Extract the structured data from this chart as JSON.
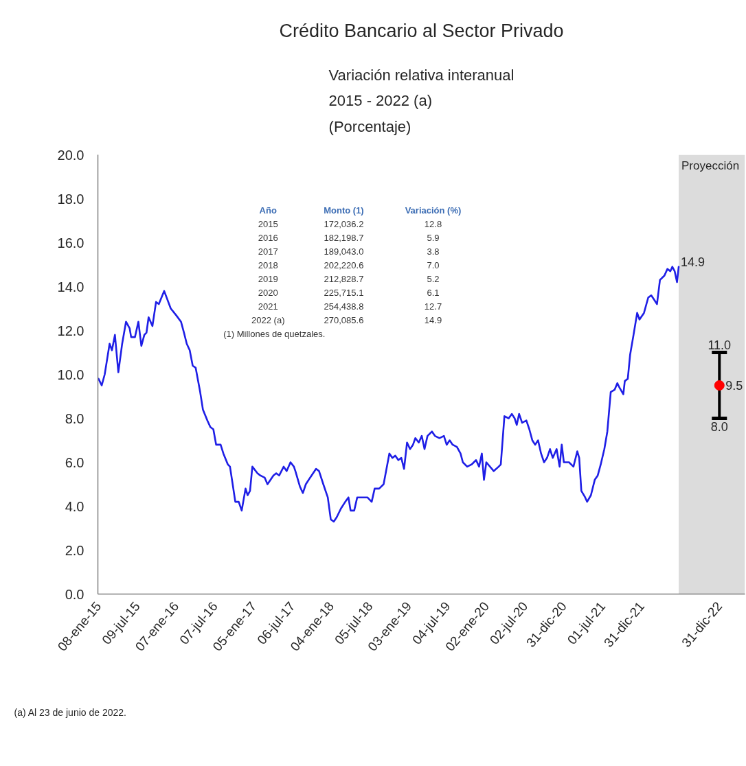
{
  "chart_data": {
    "type": "line",
    "title": "Crédito Bancario al Sector Privado",
    "subtitle": "Variación relativa interanual\n2015 - 2022 (a)\n(Porcentaje)",
    "xlim": [
      "2015-01-05",
      "2023-04-30"
    ],
    "xticks": [
      {
        "value": "2015-01-08",
        "label": "08-ene-15"
      },
      {
        "value": "2015-07-09",
        "label": "09-jul-15"
      },
      {
        "value": "2016-01-07",
        "label": "07-ene-16"
      },
      {
        "value": "2016-07-07",
        "label": "07-jul-16"
      },
      {
        "value": "2017-01-05",
        "label": "05-ene-17"
      },
      {
        "value": "2017-07-06",
        "label": "06-jul-17"
      },
      {
        "value": "2018-01-04",
        "label": "04-ene-18"
      },
      {
        "value": "2018-07-05",
        "label": "05-jul-18"
      },
      {
        "value": "2019-01-03",
        "label": "03-ene-19"
      },
      {
        "value": "2019-07-04",
        "label": "04-jul-19"
      },
      {
        "value": "2020-01-02",
        "label": "02-ene-20"
      },
      {
        "value": "2020-07-02",
        "label": "02-jul-20"
      },
      {
        "value": "2020-12-31",
        "label": "31-dic-20"
      },
      {
        "value": "2021-07-01",
        "label": "01-jul-21"
      },
      {
        "value": "2021-12-31",
        "label": "31-dic-21"
      },
      {
        "value": "2022-12-31",
        "label": "31-dic-22"
      }
    ],
    "ylim": [
      0,
      20
    ],
    "yticks": [
      {
        "value": 0,
        "label": "0.0"
      },
      {
        "value": 2,
        "label": "2.0"
      },
      {
        "value": 4,
        "label": "4.0"
      },
      {
        "value": 6,
        "label": "6.0"
      },
      {
        "value": 8,
        "label": "8.0"
      },
      {
        "value": 10,
        "label": "10.0"
      },
      {
        "value": 12,
        "label": "12.0"
      },
      {
        "value": 14,
        "label": "14.0"
      },
      {
        "value": 16,
        "label": "16.0"
      },
      {
        "value": 18,
        "label": "18.0"
      },
      {
        "value": 20,
        "label": "20.0"
      }
    ],
    "bands": [
      {
        "axis": "x",
        "from": "2022-06-23",
        "to": "2023-04-30",
        "label": "Proyección",
        "color": "#dcdcdc"
      }
    ],
    "series": [
      {
        "color": "#1e1ee6",
        "x": [
          "2015-01-08",
          "2015-01-23",
          "2015-02-06",
          "2015-03-01",
          "2015-03-12",
          "2015-03-26",
          "2015-04-11",
          "2015-04-29",
          "2015-05-17",
          "2015-06-03",
          "2015-06-10",
          "2015-06-28",
          "2015-07-14",
          "2015-07-28",
          "2015-08-11",
          "2015-08-21",
          "2015-08-31",
          "2015-09-18",
          "2015-10-05",
          "2015-10-18",
          "2015-11-12",
          "2015-12-13",
          "2016-01-07",
          "2016-01-30",
          "2016-02-13",
          "2016-02-26",
          "2016-03-11",
          "2016-03-25",
          "2016-04-08",
          "2016-04-29",
          "2016-05-12",
          "2016-06-02",
          "2016-06-16",
          "2016-06-30",
          "2016-07-13",
          "2016-08-03",
          "2016-08-16",
          "2016-09-06",
          "2016-09-16",
          "2016-09-27",
          "2016-10-11",
          "2016-10-27",
          "2016-11-10",
          "2016-11-28",
          "2016-12-08",
          "2016-12-19",
          "2016-12-30",
          "2017-01-23",
          "2017-02-05",
          "2017-02-26",
          "2017-03-11",
          "2017-04-08",
          "2017-04-21",
          "2017-05-05",
          "2017-05-26",
          "2017-06-09",
          "2017-06-27",
          "2017-07-13",
          "2017-07-20",
          "2017-08-10",
          "2017-08-24",
          "2017-09-07",
          "2017-09-27",
          "2017-10-25",
          "2017-11-08",
          "2017-11-28",
          "2017-12-19",
          "2018-01-02",
          "2018-01-16",
          "2018-01-30",
          "2018-02-19",
          "2018-03-11",
          "2018-03-26",
          "2018-04-05",
          "2018-04-22",
          "2018-05-06",
          "2018-05-26",
          "2018-06-23",
          "2018-07-13",
          "2018-07-27",
          "2018-08-17",
          "2018-09-07",
          "2018-10-04",
          "2018-10-18",
          "2018-11-01",
          "2018-11-15",
          "2018-11-29",
          "2018-12-12",
          "2018-12-26",
          "2019-01-09",
          "2019-01-23",
          "2019-02-03",
          "2019-02-19",
          "2019-03-05",
          "2019-03-18",
          "2019-04-01",
          "2019-04-22",
          "2019-05-06",
          "2019-05-27",
          "2019-06-17",
          "2019-06-30",
          "2019-07-14",
          "2019-07-28",
          "2019-08-17",
          "2019-09-03",
          "2019-09-14",
          "2019-10-04",
          "2019-10-25",
          "2019-11-15",
          "2019-11-29",
          "2019-12-12",
          "2019-12-22",
          "2020-01-02",
          "2020-02-06",
          "2020-02-29",
          "2020-03-10",
          "2020-03-27",
          "2020-04-16",
          "2020-05-01",
          "2020-05-14",
          "2020-05-24",
          "2020-06-04",
          "2020-06-18",
          "2020-07-08",
          "2020-07-22",
          "2020-08-05",
          "2020-08-18",
          "2020-09-01",
          "2020-09-15",
          "2020-09-29",
          "2020-10-13",
          "2020-10-27",
          "2020-11-09",
          "2020-11-27",
          "2020-12-11",
          "2020-12-21",
          "2020-12-31",
          "2021-01-24",
          "2021-02-14",
          "2021-03-04",
          "2021-03-13",
          "2021-03-23",
          "2021-04-10",
          "2021-04-19",
          "2021-05-07",
          "2021-05-25",
          "2021-06-08",
          "2021-06-22",
          "2021-07-09",
          "2021-07-23",
          "2021-08-08",
          "2021-08-26",
          "2021-09-08",
          "2021-09-18",
          "2021-10-06",
          "2021-10-13",
          "2021-10-27",
          "2021-11-07",
          "2021-11-23",
          "2021-12-10",
          "2021-12-21",
          "2022-01-11",
          "2022-01-31",
          "2022-02-14",
          "2022-02-28",
          "2022-03-13",
          "2022-03-27",
          "2022-04-17",
          "2022-05-01",
          "2022-05-15",
          "2022-05-24",
          "2022-06-04",
          "2022-06-15",
          "2022-06-23"
        ],
        "values": [
          9.8,
          9.5,
          10.0,
          11.4,
          11.1,
          11.8,
          10.1,
          11.4,
          12.4,
          12.1,
          11.7,
          11.7,
          12.4,
          11.3,
          11.8,
          11.9,
          12.6,
          12.2,
          13.3,
          13.2,
          13.8,
          13.0,
          12.7,
          12.4,
          11.9,
          11.4,
          11.1,
          10.4,
          10.3,
          9.2,
          8.4,
          7.9,
          7.6,
          7.5,
          6.8,
          6.8,
          6.4,
          5.9,
          5.8,
          5.1,
          4.2,
          4.2,
          3.8,
          4.8,
          4.5,
          4.7,
          5.8,
          5.5,
          5.4,
          5.3,
          5.0,
          5.4,
          5.5,
          5.4,
          5.8,
          5.6,
          6.0,
          5.8,
          5.6,
          4.9,
          4.6,
          5.0,
          5.3,
          5.7,
          5.6,
          5.0,
          4.4,
          3.4,
          3.3,
          3.5,
          3.9,
          4.2,
          4.4,
          3.8,
          3.8,
          4.4,
          4.4,
          4.4,
          4.2,
          4.8,
          4.8,
          5.0,
          6.4,
          6.2,
          6.3,
          6.1,
          6.2,
          5.7,
          6.9,
          6.6,
          6.8,
          7.1,
          6.9,
          7.2,
          6.6,
          7.2,
          7.4,
          7.2,
          7.1,
          7.2,
          6.8,
          7.0,
          6.8,
          6.7,
          6.4,
          6.0,
          5.8,
          5.9,
          6.1,
          5.8,
          6.4,
          5.2,
          6.0,
          5.6,
          5.8,
          5.9,
          8.1,
          8.0,
          8.2,
          8.0,
          7.7,
          8.2,
          7.8,
          7.9,
          7.5,
          7.0,
          6.8,
          7.0,
          6.4,
          6.0,
          6.2,
          6.6,
          6.2,
          6.6,
          5.8,
          6.8,
          6.0,
          6.0,
          5.8,
          6.5,
          6.2,
          4.7,
          4.4,
          4.2,
          4.5,
          5.2,
          5.4,
          5.9,
          6.6,
          7.4,
          9.2,
          9.3,
          9.6,
          9.4,
          9.1,
          9.7,
          9.8,
          10.9,
          11.8,
          12.8,
          12.5,
          12.8,
          13.5,
          13.6,
          13.4,
          13.2,
          14.3,
          14.5,
          14.8,
          14.7,
          14.9,
          14.7,
          14.2,
          14.9
        ]
      },
      {
        "type": "scatter",
        "color": "#ff0000",
        "marker": "circle",
        "x": [
          "2022-12-31"
        ],
        "values": [
          9.5
        ],
        "errors": [
          [
            8.0,
            11.0
          ]
        ],
        "value_labels": [
          "9.5"
        ]
      }
    ],
    "annotations": [
      "Año",
      "Monto (1)",
      "Variación (%)",
      "2015",
      "172,036.2",
      "12.8",
      "2016",
      "182,198.7",
      "5.9",
      "2017",
      "189,043.0",
      "3.8",
      "2018",
      "202,220.6",
      "7.0",
      "2019",
      "212,828.7",
      "5.2",
      "2020",
      "225,715.1",
      "6.1",
      "2021",
      "254,438.8",
      "12.7",
      "2022 (a)",
      "270,085.6",
      "14.9",
      "(1) Millones de quetzales.",
      "(a) Al 23 de junio de 2022.",
      {
        "text": "14.9",
        "x": "2022-06-23",
        "y": 14.9
      },
      {
        "text": "11.0",
        "x": "2022-12-31",
        "y": 11.0
      },
      {
        "text": "8.0",
        "x": "2022-12-31",
        "y": 8.0
      }
    ]
  }
}
